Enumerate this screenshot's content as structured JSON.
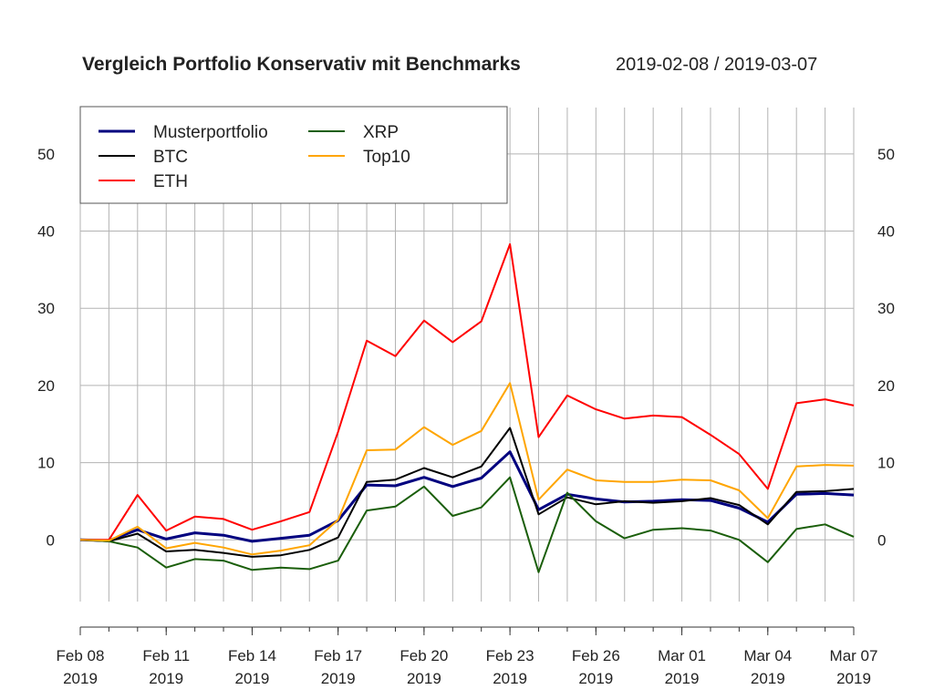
{
  "chart_data": {
    "type": "line",
    "title": "Vergleich Portfolio Konservativ mit Benchmarks",
    "subtitle": "2019-02-08 / 2019-03-07",
    "xlabel": "",
    "ylabel": "",
    "x": [
      "2019-02-08",
      "2019-02-09",
      "2019-02-10",
      "2019-02-11",
      "2019-02-12",
      "2019-02-13",
      "2019-02-14",
      "2019-02-15",
      "2019-02-16",
      "2019-02-17",
      "2019-02-18",
      "2019-02-19",
      "2019-02-20",
      "2019-02-21",
      "2019-02-22",
      "2019-02-23",
      "2019-02-24",
      "2019-02-25",
      "2019-02-26",
      "2019-02-27",
      "2019-02-28",
      "2019-03-01",
      "2019-03-02",
      "2019-03-03",
      "2019-03-04",
      "2019-03-05",
      "2019-03-06",
      "2019-03-07"
    ],
    "ylim": [
      -8,
      56
    ],
    "yticks": [
      0,
      10,
      20,
      30,
      40,
      50
    ],
    "xticks": [
      {
        "date": "Feb 08",
        "year": "2019",
        "index": 0
      },
      {
        "date": "Feb 11",
        "year": "2019",
        "index": 3
      },
      {
        "date": "Feb 14",
        "year": "2019",
        "index": 6
      },
      {
        "date": "Feb 17",
        "year": "2019",
        "index": 9
      },
      {
        "date": "Feb 20",
        "year": "2019",
        "index": 12
      },
      {
        "date": "Feb 23",
        "year": "2019",
        "index": 15
      },
      {
        "date": "Feb 26",
        "year": "2019",
        "index": 18
      },
      {
        "date": "Mar 01",
        "year": "2019",
        "index": 21
      },
      {
        "date": "Mar 04",
        "year": "2019",
        "index": 24
      },
      {
        "date": "Mar 07",
        "year": "2019",
        "index": 27
      }
    ],
    "grid": true,
    "legend_position": "top-left",
    "series": [
      {
        "name": "Musterportfolio",
        "color": "#00007f",
        "values": [
          0,
          -0.1,
          1.3,
          0.1,
          0.9,
          0.6,
          -0.2,
          0.2,
          0.6,
          2.5,
          7.1,
          7.0,
          8.1,
          6.9,
          8.0,
          11.4,
          3.9,
          5.9,
          5.3,
          4.9,
          5.0,
          5.2,
          5.1,
          4.1,
          2.3,
          5.9,
          6.0,
          5.8
        ]
      },
      {
        "name": "BTC",
        "color": "#000000",
        "values": [
          0,
          -0.2,
          0.8,
          -1.5,
          -1.3,
          -1.7,
          -2.2,
          -2.0,
          -1.3,
          0.3,
          7.5,
          7.8,
          9.3,
          8.1,
          9.5,
          14.5,
          3.3,
          5.5,
          4.6,
          5.0,
          4.8,
          5.0,
          5.4,
          4.5,
          2.0,
          6.2,
          6.3,
          6.6
        ]
      },
      {
        "name": "ETH",
        "color": "#ff0000",
        "values": [
          0,
          0,
          5.8,
          1.2,
          3.0,
          2.7,
          1.3,
          2.4,
          3.6,
          14.0,
          25.8,
          23.8,
          28.4,
          25.6,
          28.3,
          38.3,
          13.3,
          18.7,
          16.9,
          15.7,
          16.1,
          15.9,
          13.6,
          11.1,
          6.6,
          17.7,
          18.2,
          17.4
        ]
      },
      {
        "name": "XRP",
        "color": "#1a5e0a",
        "values": [
          0,
          -0.2,
          -1.0,
          -3.6,
          -2.5,
          -2.7,
          -3.9,
          -3.6,
          -3.8,
          -2.7,
          3.8,
          4.3,
          6.9,
          3.1,
          4.2,
          8.1,
          -4.2,
          6.1,
          2.4,
          0.2,
          1.3,
          1.5,
          1.2,
          0.0,
          -2.9,
          1.4,
          2.0,
          0.4
        ]
      },
      {
        "name": "Top10",
        "color": "#ffa500",
        "values": [
          0,
          -0.1,
          1.7,
          -1.1,
          -0.4,
          -1.0,
          -1.9,
          -1.4,
          -0.7,
          2.6,
          11.6,
          11.7,
          14.6,
          12.3,
          14.1,
          20.3,
          5.2,
          9.1,
          7.7,
          7.5,
          7.5,
          7.8,
          7.7,
          6.4,
          2.8,
          9.5,
          9.7,
          9.6
        ]
      }
    ]
  }
}
